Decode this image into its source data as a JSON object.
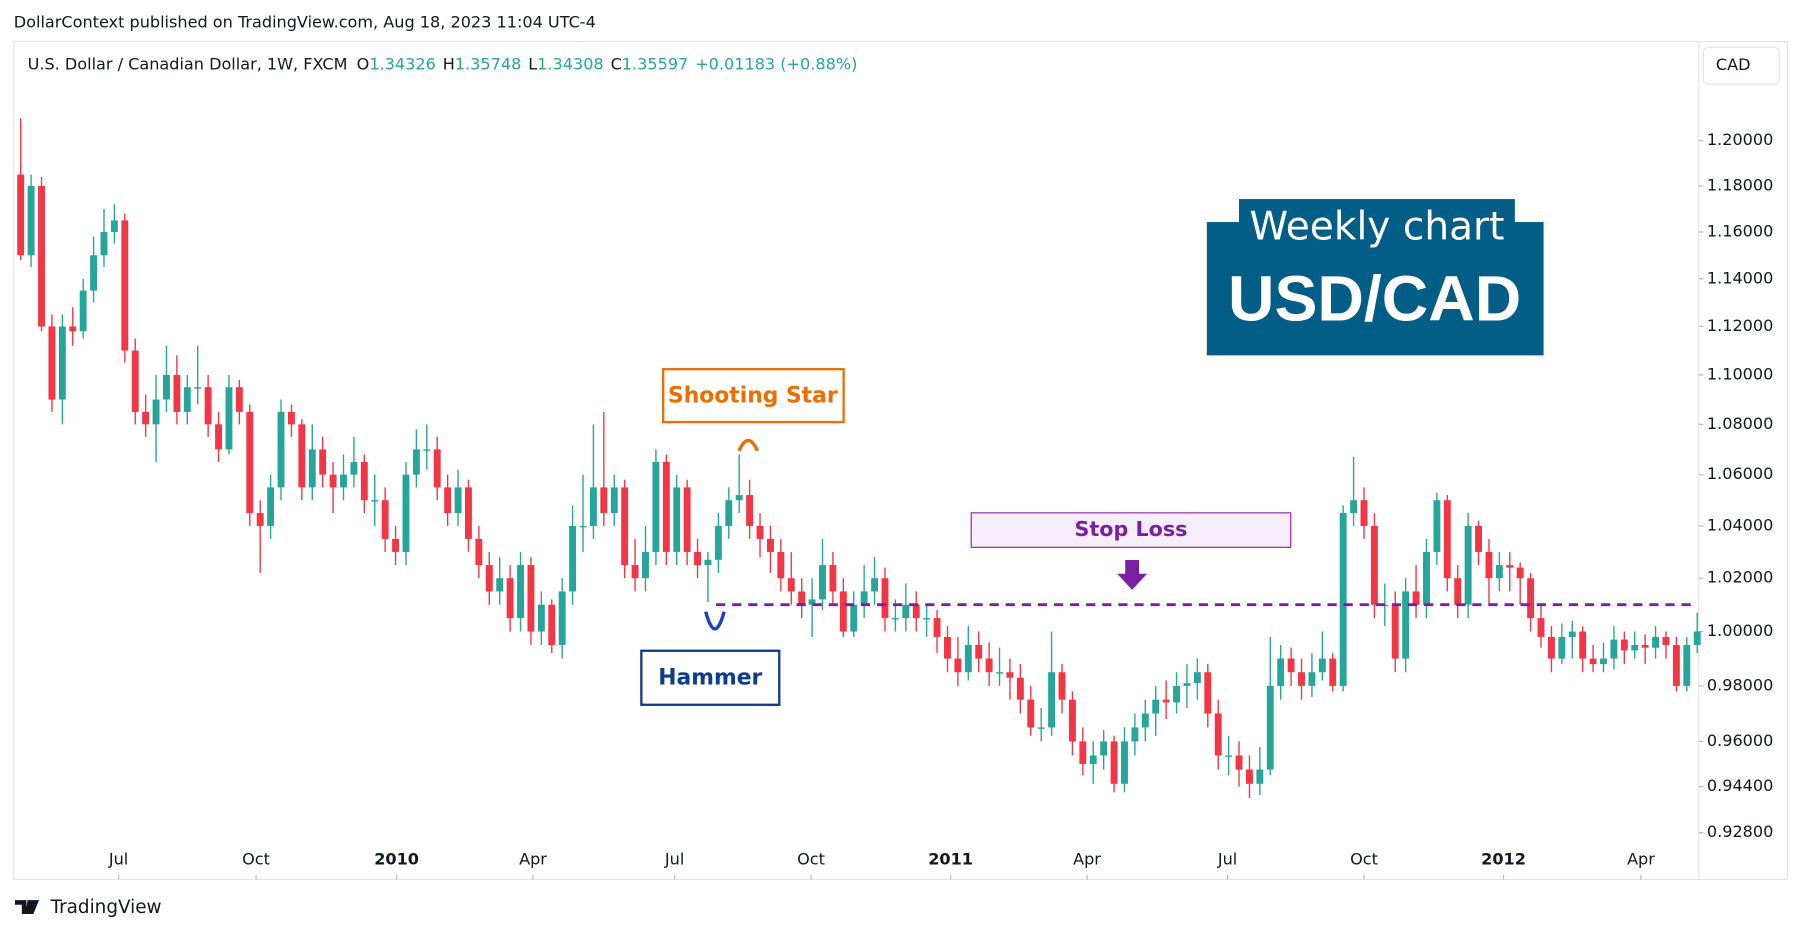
{
  "header": {
    "published": "DollarContext published on TradingView.com, Aug 18, 2023 11:04 UTC-4"
  },
  "footer": {
    "brand": "TradingView"
  },
  "currency_button": "CAD",
  "chart_data": {
    "type": "candlestick",
    "title": "U.S. Dollar / Canadian Dollar, 1W, FXCM",
    "ohlc_legend": [
      {
        "key": "O",
        "value": 1.34326
      },
      {
        "key": "H",
        "value": 1.35748
      },
      {
        "key": "L",
        "value": 1.34308
      },
      {
        "key": "C",
        "value": 1.35597
      }
    ],
    "change": "+0.01183 (+0.88%)",
    "up_color": "#26a69a",
    "down_color": "#f23645",
    "log_scale": true,
    "ylim": [
      0.912,
      1.245
    ],
    "yticks": [
      {
        "value": 1.2,
        "label": "1.20000"
      },
      {
        "value": 1.18,
        "label": "1.18000"
      },
      {
        "value": 1.16,
        "label": "1.16000"
      },
      {
        "value": 1.14,
        "label": "1.14000"
      },
      {
        "value": 1.12,
        "label": "1.12000"
      },
      {
        "value": 1.1,
        "label": "1.10000"
      },
      {
        "value": 1.08,
        "label": "1.08000"
      },
      {
        "value": 1.06,
        "label": "1.06000"
      },
      {
        "value": 1.04,
        "label": "1.04000"
      },
      {
        "value": 1.02,
        "label": "1.02000"
      },
      {
        "value": 1,
        "label": "1.00000"
      },
      {
        "value": 0.98,
        "label": "0.98000"
      },
      {
        "value": 0.96,
        "label": "0.96000"
      },
      {
        "value": 0.944,
        "label": "0.94400"
      },
      {
        "value": 0.928,
        "label": "0.92800"
      }
    ],
    "xticks": [
      {
        "value": 9.4,
        "label": "Jul"
      },
      {
        "value": 22.6,
        "label": "Oct"
      },
      {
        "value": 36.1,
        "label": "2010"
      },
      {
        "value": 49.2,
        "label": "Apr"
      },
      {
        "value": 62.8,
        "label": "Jul"
      },
      {
        "value": 75.9,
        "label": "Oct"
      },
      {
        "value": 89.3,
        "label": "2011"
      },
      {
        "value": 102.4,
        "label": "Apr"
      },
      {
        "value": 115.9,
        "label": "Jul"
      },
      {
        "value": 129.0,
        "label": "Oct"
      },
      {
        "value": 142.4,
        "label": "2012"
      },
      {
        "value": 155.6,
        "label": "Apr"
      }
    ],
    "candles": [
      [
        1.185,
        1.21,
        1.148,
        1.15
      ],
      [
        1.15,
        1.185,
        1.145,
        1.18
      ],
      [
        1.18,
        1.184,
        1.118,
        1.12
      ],
      [
        1.12,
        1.125,
        1.085,
        1.09
      ],
      [
        1.09,
        1.125,
        1.08,
        1.12
      ],
      [
        1.12,
        1.128,
        1.112,
        1.118
      ],
      [
        1.118,
        1.14,
        1.115,
        1.135
      ],
      [
        1.135,
        1.158,
        1.13,
        1.15
      ],
      [
        1.15,
        1.17,
        1.145,
        1.16
      ],
      [
        1.16,
        1.172,
        1.155,
        1.165
      ],
      [
        1.165,
        1.168,
        1.105,
        1.11
      ],
      [
        1.11,
        1.115,
        1.08,
        1.085
      ],
      [
        1.085,
        1.092,
        1.075,
        1.08
      ],
      [
        1.08,
        1.1,
        1.065,
        1.09
      ],
      [
        1.09,
        1.112,
        1.085,
        1.1
      ],
      [
        1.1,
        1.108,
        1.08,
        1.085
      ],
      [
        1.085,
        1.1,
        1.08,
        1.095
      ],
      [
        1.095,
        1.112,
        1.088,
        1.095
      ],
      [
        1.095,
        1.1,
        1.075,
        1.08
      ],
      [
        1.08,
        1.085,
        1.065,
        1.07
      ],
      [
        1.07,
        1.1,
        1.068,
        1.095
      ],
      [
        1.095,
        1.098,
        1.08,
        1.085
      ],
      [
        1.085,
        1.088,
        1.04,
        1.045
      ],
      [
        1.045,
        1.05,
        1.022,
        1.04
      ],
      [
        1.04,
        1.06,
        1.035,
        1.055
      ],
      [
        1.055,
        1.09,
        1.05,
        1.085
      ],
      [
        1.085,
        1.088,
        1.075,
        1.08
      ],
      [
        1.08,
        1.082,
        1.05,
        1.055
      ],
      [
        1.055,
        1.08,
        1.05,
        1.07
      ],
      [
        1.07,
        1.075,
        1.055,
        1.06
      ],
      [
        1.06,
        1.065,
        1.045,
        1.055
      ],
      [
        1.055,
        1.068,
        1.05,
        1.06
      ],
      [
        1.06,
        1.075,
        1.055,
        1.065
      ],
      [
        1.065,
        1.068,
        1.045,
        1.05
      ],
      [
        1.05,
        1.06,
        1.04,
        1.05
      ],
      [
        1.05,
        1.055,
        1.03,
        1.035
      ],
      [
        1.035,
        1.04,
        1.025,
        1.03
      ],
      [
        1.03,
        1.065,
        1.025,
        1.06
      ],
      [
        1.06,
        1.078,
        1.055,
        1.07
      ],
      [
        1.07,
        1.08,
        1.062,
        1.07
      ],
      [
        1.07,
        1.075,
        1.05,
        1.055
      ],
      [
        1.055,
        1.06,
        1.04,
        1.045
      ],
      [
        1.045,
        1.062,
        1.04,
        1.055
      ],
      [
        1.055,
        1.058,
        1.03,
        1.035
      ],
      [
        1.035,
        1.04,
        1.02,
        1.025
      ],
      [
        1.025,
        1.03,
        1.01,
        1.015
      ],
      [
        1.015,
        1.028,
        1.01,
        1.02
      ],
      [
        1.02,
        1.025,
        1.0,
        1.005
      ],
      [
        1.005,
        1.03,
        1.0,
        1.025
      ],
      [
        1.025,
        1.028,
        0.995,
        1.0
      ],
      [
        1.0,
        1.015,
        0.995,
        1.01
      ],
      [
        1.01,
        1.012,
        0.992,
        0.995
      ],
      [
        0.995,
        1.02,
        0.99,
        1.015
      ],
      [
        1.015,
        1.048,
        1.01,
        1.04
      ],
      [
        1.04,
        1.06,
        1.03,
        1.04
      ],
      [
        1.04,
        1.08,
        1.035,
        1.055
      ],
      [
        1.055,
        1.085,
        1.04,
        1.045
      ],
      [
        1.045,
        1.06,
        1.04,
        1.055
      ],
      [
        1.055,
        1.058,
        1.02,
        1.025
      ],
      [
        1.025,
        1.035,
        1.015,
        1.02
      ],
      [
        1.02,
        1.04,
        1.015,
        1.03
      ],
      [
        1.03,
        1.07,
        1.025,
        1.065
      ],
      [
        1.065,
        1.068,
        1.025,
        1.03
      ],
      [
        1.03,
        1.06,
        1.025,
        1.055
      ],
      [
        1.055,
        1.058,
        1.025,
        1.03
      ],
      [
        1.03,
        1.035,
        1.02,
        1.025
      ],
      [
        1.025,
        1.03,
        1.011,
        1.027
      ],
      [
        1.027,
        1.045,
        1.022,
        1.04
      ],
      [
        1.04,
        1.055,
        1.035,
        1.05
      ],
      [
        1.05,
        1.068,
        1.045,
        1.052
      ],
      [
        1.052,
        1.058,
        1.035,
        1.04
      ],
      [
        1.04,
        1.045,
        1.028,
        1.035
      ],
      [
        1.035,
        1.04,
        1.022,
        1.03
      ],
      [
        1.03,
        1.035,
        1.015,
        1.02
      ],
      [
        1.02,
        1.03,
        1.01,
        1.015
      ],
      [
        1.015,
        1.02,
        1.005,
        1.01
      ],
      [
        1.01,
        1.02,
        0.998,
        1.012
      ],
      [
        1.012,
        1.035,
        1.008,
        1.025
      ],
      [
        1.025,
        1.03,
        1.01,
        1.015
      ],
      [
        1.015,
        1.02,
        0.998,
        1.0
      ],
      [
        1.0,
        1.015,
        0.998,
        1.01
      ],
      [
        1.01,
        1.025,
        1.005,
        1.015
      ],
      [
        1.015,
        1.028,
        1.01,
        1.02
      ],
      [
        1.02,
        1.024,
        1.0,
        1.005
      ],
      [
        1.005,
        1.012,
        1.0,
        1.005
      ],
      [
        1.005,
        1.018,
        1.0,
        1.01
      ],
      [
        1.01,
        1.015,
        1.0,
        1.005
      ],
      [
        1.005,
        1.01,
        0.998,
        1.005
      ],
      [
        1.005,
        1.008,
        0.992,
        0.998
      ],
      [
        0.998,
        1.002,
        0.985,
        0.99
      ],
      [
        0.99,
        0.998,
        0.98,
        0.985
      ],
      [
        0.985,
        1.002,
        0.982,
        0.995
      ],
      [
        0.995,
        1.0,
        0.985,
        0.99
      ],
      [
        0.99,
        0.996,
        0.98,
        0.985
      ],
      [
        0.985,
        0.994,
        0.98,
        0.985
      ],
      [
        0.985,
        0.99,
        0.975,
        0.983
      ],
      [
        0.983,
        0.988,
        0.97,
        0.975
      ],
      [
        0.975,
        0.98,
        0.962,
        0.965
      ],
      [
        0.965,
        0.972,
        0.96,
        0.965
      ],
      [
        0.965,
        1.0,
        0.962,
        0.985
      ],
      [
        0.985,
        0.988,
        0.97,
        0.975
      ],
      [
        0.975,
        0.978,
        0.955,
        0.96
      ],
      [
        0.96,
        0.965,
        0.948,
        0.952
      ],
      [
        0.952,
        0.96,
        0.945,
        0.955
      ],
      [
        0.955,
        0.964,
        0.95,
        0.96
      ],
      [
        0.96,
        0.962,
        0.942,
        0.945
      ],
      [
        0.945,
        0.965,
        0.942,
        0.96
      ],
      [
        0.96,
        0.97,
        0.955,
        0.965
      ],
      [
        0.965,
        0.975,
        0.96,
        0.97
      ],
      [
        0.97,
        0.98,
        0.962,
        0.975
      ],
      [
        0.975,
        0.982,
        0.968,
        0.974
      ],
      [
        0.974,
        0.985,
        0.97,
        0.98
      ],
      [
        0.98,
        0.988,
        0.972,
        0.981
      ],
      [
        0.981,
        0.99,
        0.975,
        0.985
      ],
      [
        0.985,
        0.988,
        0.965,
        0.97
      ],
      [
        0.97,
        0.975,
        0.95,
        0.955
      ],
      [
        0.955,
        0.962,
        0.948,
        0.955
      ],
      [
        0.955,
        0.96,
        0.944,
        0.95
      ],
      [
        0.95,
        0.955,
        0.94,
        0.945
      ],
      [
        0.945,
        0.958,
        0.941,
        0.95
      ],
      [
        0.95,
        0.998,
        0.948,
        0.98
      ],
      [
        0.98,
        0.995,
        0.975,
        0.99
      ],
      [
        0.99,
        0.994,
        0.98,
        0.985
      ],
      [
        0.985,
        0.99,
        0.975,
        0.98
      ],
      [
        0.98,
        0.992,
        0.976,
        0.985
      ],
      [
        0.985,
        1.0,
        0.982,
        0.99
      ],
      [
        0.99,
        0.992,
        0.978,
        0.98
      ],
      [
        0.98,
        1.048,
        0.978,
        1.045
      ],
      [
        1.045,
        1.067,
        1.04,
        1.05
      ],
      [
        1.05,
        1.055,
        1.035,
        1.04
      ],
      [
        1.04,
        1.045,
        1.005,
        1.01
      ],
      [
        1.01,
        1.018,
        1.002,
        1.01
      ],
      [
        1.01,
        1.015,
        0.985,
        0.99
      ],
      [
        0.99,
        1.02,
        0.985,
        1.015
      ],
      [
        1.015,
        1.025,
        1.005,
        1.01
      ],
      [
        1.01,
        1.035,
        1.005,
        1.03
      ],
      [
        1.03,
        1.053,
        1.025,
        1.05
      ],
      [
        1.05,
        1.052,
        1.015,
        1.02
      ],
      [
        1.02,
        1.025,
        1.005,
        1.01
      ],
      [
        1.01,
        1.045,
        1.005,
        1.04
      ],
      [
        1.04,
        1.042,
        1.025,
        1.03
      ],
      [
        1.03,
        1.035,
        1.01,
        1.02
      ],
      [
        1.02,
        1.03,
        1.015,
        1.025
      ],
      [
        1.025,
        1.03,
        1.015,
        1.024
      ],
      [
        1.024,
        1.026,
        1.01,
        1.02
      ],
      [
        1.02,
        1.022,
        1.0,
        1.005
      ],
      [
        1.005,
        1.01,
        0.994,
        0.998
      ],
      [
        0.998,
        1.002,
        0.985,
        0.99
      ],
      [
        0.99,
        1.003,
        0.988,
        0.998
      ],
      [
        0.998,
        1.004,
        0.99,
        1.0
      ],
      [
        1.0,
        1.002,
        0.985,
        0.99
      ],
      [
        0.99,
        0.995,
        0.985,
        0.988
      ],
      [
        0.988,
        0.996,
        0.985,
        0.99
      ],
      [
        0.99,
        1.002,
        0.986,
        0.997
      ],
      [
        0.997,
        1.0,
        0.988,
        0.993
      ],
      [
        0.993,
        1.0,
        0.99,
        0.995
      ],
      [
        0.995,
        0.999,
        0.988,
        0.994
      ],
      [
        0.994,
        1.002,
        0.99,
        0.998
      ],
      [
        0.998,
        1.0,
        0.99,
        0.995
      ],
      [
        0.995,
        0.998,
        0.978,
        0.98
      ],
      [
        0.98,
        0.998,
        0.978,
        0.995
      ],
      [
        0.995,
        1.007,
        0.992,
        1.0
      ]
    ],
    "annotations": {
      "shooting_star": "Shooting Star",
      "hammer": "Hammer",
      "stop_loss": {
        "label": "Stop Loss",
        "value": 1.01
      },
      "watermark": [
        "Weekly chart",
        "USD/CAD"
      ]
    }
  }
}
